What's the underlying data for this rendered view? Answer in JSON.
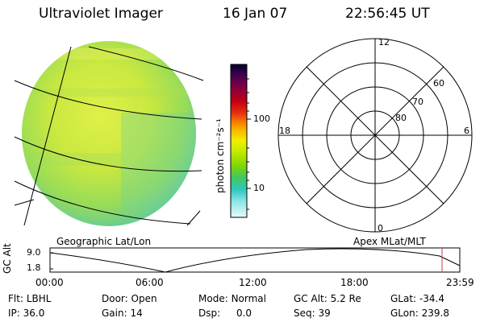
{
  "header": {
    "title": "Ultraviolet Imager",
    "date": "16 Jan 07",
    "time": "22:56:45 UT"
  },
  "colorbar": {
    "unit_label": "photon cm⁻²s⁻¹",
    "ticks": [
      "100",
      "10"
    ],
    "colors": [
      "#000033",
      "#3a0040",
      "#6a0050",
      "#9a0020",
      "#c80010",
      "#e84010",
      "#f88000",
      "#f8b000",
      "#f8e000",
      "#d8f000",
      "#a8e800",
      "#78d800",
      "#48c848",
      "#30c8b8",
      "#60e0e0",
      "#b0f0f0",
      "#e0f8f8"
    ]
  },
  "image_panel": {
    "label": "Geographic Lat/Lon",
    "disk_colors": [
      "#d8f048",
      "#c0e840",
      "#a8e050",
      "#90d860",
      "#70d080",
      "#50c8b0"
    ]
  },
  "polar_panel": {
    "label": "Apex MLat/MLT",
    "mlt_labels": {
      "top": "12",
      "left": "18",
      "right": "6",
      "bottom": "0"
    },
    "lat_labels": [
      "60",
      "70",
      "80"
    ]
  },
  "altitude_plot": {
    "axis_label": "GC Alt",
    "y_ticks": [
      "9.0",
      "1.8"
    ],
    "x_ticks": [
      "00:00",
      "06:00",
      "12:00",
      "18:00",
      "23:59"
    ],
    "marker_color": "#c04040"
  },
  "footer": {
    "row1": [
      {
        "key": "Flt:",
        "val": "LBHL"
      },
      {
        "key": "Door:",
        "val": "Open"
      },
      {
        "key": "Mode:",
        "val": "Normal"
      },
      {
        "key": "GC Alt:",
        "val": "5.2 Re"
      },
      {
        "key": "GLat:",
        "val": "-34.4"
      }
    ],
    "row2": [
      {
        "key": "IP:",
        "val": "36.0"
      },
      {
        "key": "Gain:",
        "val": "14"
      },
      {
        "key": "Dsp:",
        "val": "0.0"
      },
      {
        "key": "Seq:",
        "val": "39"
      },
      {
        "key": "GLon:",
        "val": "239.8"
      }
    ]
  }
}
